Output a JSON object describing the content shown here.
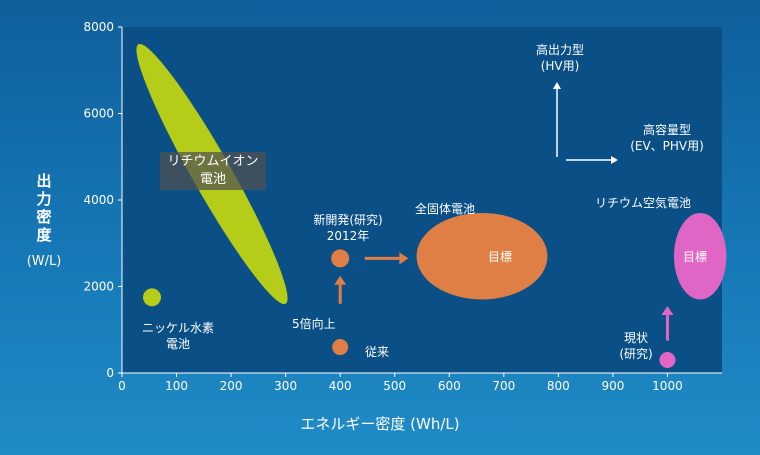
{
  "chart_data": {
    "type": "scatter",
    "xlabel": "エネルギー密度 (Wh/L)",
    "ylabel": "出力密度",
    "ylabel_unit": "(W/L)",
    "xlim": [
      0,
      1100
    ],
    "ylim": [
      0,
      8000
    ],
    "x_ticks": [
      0,
      100,
      200,
      300,
      400,
      500,
      600,
      700,
      800,
      900,
      1000
    ],
    "y_ticks": [
      0,
      2000,
      4000,
      6000,
      8000
    ],
    "regions": [
      {
        "name": "リチウムイオン電池",
        "label_lines": [
          "リチウムイオン",
          "電池"
        ],
        "color": "#b5cc18",
        "start": [
          30,
          7600
        ],
        "end": [
          300,
          1600
        ],
        "minor_width_y": 900
      },
      {
        "name": "全固体電池 目標",
        "inner": "目標",
        "color": "#e07f45",
        "cx": 660,
        "cy": 2700,
        "rx": 120,
        "ry": 1000
      },
      {
        "name": "リチウム空気電池 目標",
        "inner": "目標",
        "color": "#e066c6",
        "cx": 1060,
        "cy": 2700,
        "rx": 48,
        "ry": 1000
      }
    ],
    "points": [
      {
        "name": "ニッケル水素電池",
        "x": 55,
        "y": 1750,
        "color": "#b5cc18"
      },
      {
        "name": "従来",
        "x": 400,
        "y": 600,
        "color": "#e07f45"
      },
      {
        "name": "新開発(研究) 2012年",
        "x": 400,
        "y": 2650,
        "color": "#e07f45"
      },
      {
        "name": "現状(研究)",
        "x": 1000,
        "y": 300,
        "color": "#e066c6"
      }
    ],
    "arrows": [
      {
        "label": "5倍向上",
        "from": [
          400,
          1600
        ],
        "to": [
          400,
          2250
        ],
        "color": "#e07f45"
      },
      {
        "from": [
          445,
          2650
        ],
        "to": [
          525,
          2650
        ],
        "color": "#e07f45"
      },
      {
        "from": [
          1000,
          750
        ],
        "to": [
          1000,
          1550
        ],
        "color": "#e066c6"
      }
    ]
  },
  "labels": {
    "lithium_ion": [
      "リチウムイオン",
      "電池"
    ],
    "nimh": [
      "ニッケル水素",
      "電池"
    ],
    "conventional": "従来",
    "improvement": "5倍向上",
    "new_dev": [
      "新開発(研究)",
      "2012年"
    ],
    "solid_state": "全固体電池",
    "lithium_air": "リチウム空気電池",
    "target": "目標",
    "current": [
      "現状",
      "(研究)"
    ]
  },
  "legend": {
    "high_power": [
      "高出力型",
      "(HV用)"
    ],
    "high_capacity": [
      "高容量型",
      "(EV、PHV用)"
    ]
  }
}
